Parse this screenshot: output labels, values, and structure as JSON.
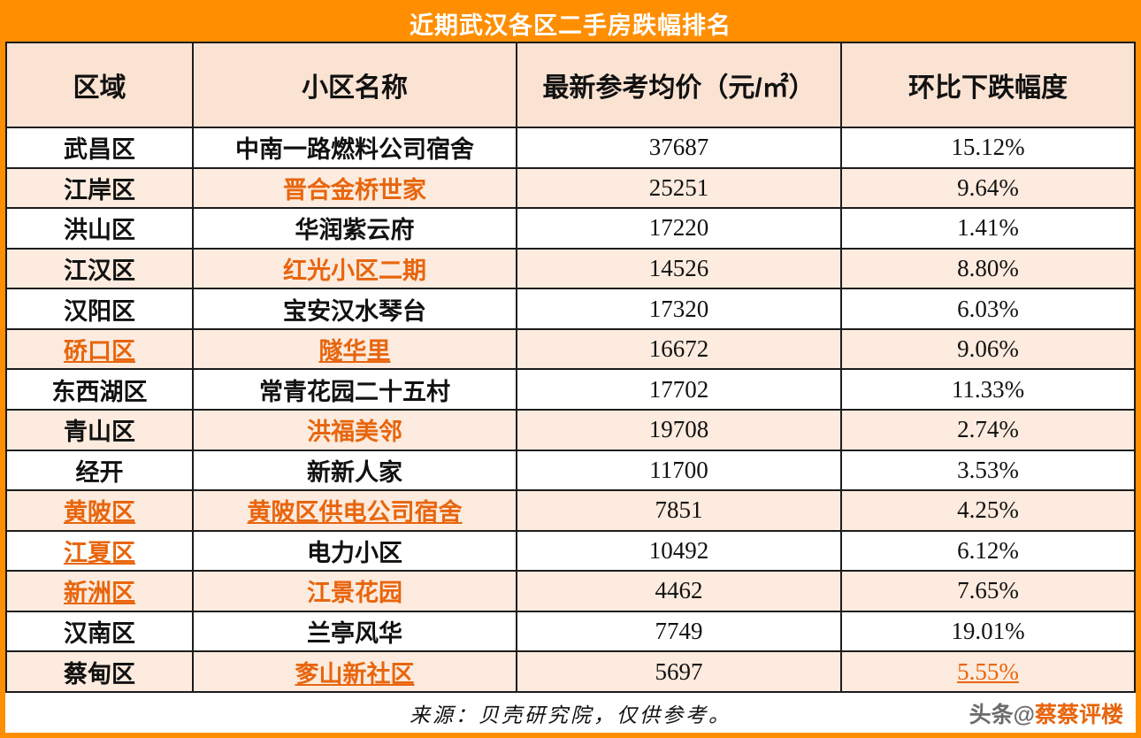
{
  "title": "近期武汉各区二手房跌幅排名",
  "chart_data": {
    "type": "table",
    "title": "近期武汉各区二手房跌幅排名",
    "columns": [
      "区域",
      "小区名称",
      "最新参考均价（元/㎡）",
      "环比下跌幅度"
    ],
    "rows": [
      [
        "武昌区",
        "中南一路燃料公司宿舍",
        "37687",
        "15.12%"
      ],
      [
        "江岸区",
        "晋合金桥世家",
        "25251",
        "9.64%"
      ],
      [
        "洪山区",
        "华润紫云府",
        "17220",
        "1.41%"
      ],
      [
        "江汉区",
        "红光小区二期",
        "14526",
        "8.80%"
      ],
      [
        "汉阳区",
        "宝安汉水琴台",
        "17320",
        "6.03%"
      ],
      [
        "硚口区",
        "隧华里",
        "16672",
        "9.06%"
      ],
      [
        "东西湖区",
        "常青花园二十五村",
        "17702",
        "11.33%"
      ],
      [
        "青山区",
        "洪福美邻",
        "19708",
        "2.74%"
      ],
      [
        "经开",
        "新新人家",
        "11700",
        "3.53%"
      ],
      [
        "黄陂区",
        "黄陂区供电公司宿舍",
        "7851",
        "4.25%"
      ],
      [
        "江夏区",
        "电力小区",
        "10492",
        "6.12%"
      ],
      [
        "新洲区",
        "江景花园",
        "4462",
        "7.65%"
      ],
      [
        "汉南区",
        "兰亭风华",
        "7749",
        "19.01%"
      ],
      [
        "蔡甸区",
        "奓山新社区",
        "5697",
        "5.55%"
      ]
    ]
  },
  "row_styles": [
    {
      "striped": false,
      "district": "normal",
      "community": "normal",
      "drop": "normal"
    },
    {
      "striped": true,
      "district": "normal",
      "community": "orange",
      "drop": "normal"
    },
    {
      "striped": false,
      "district": "normal",
      "community": "normal",
      "drop": "normal"
    },
    {
      "striped": true,
      "district": "normal",
      "community": "orange",
      "drop": "normal"
    },
    {
      "striped": false,
      "district": "normal",
      "community": "normal",
      "drop": "normal"
    },
    {
      "striped": true,
      "district": "orange-underline",
      "community": "orange-underline",
      "drop": "normal"
    },
    {
      "striped": false,
      "district": "normal",
      "community": "normal",
      "drop": "normal"
    },
    {
      "striped": true,
      "district": "normal",
      "community": "orange",
      "drop": "normal"
    },
    {
      "striped": false,
      "district": "normal",
      "community": "normal",
      "drop": "normal"
    },
    {
      "striped": true,
      "district": "orange-underline",
      "community": "orange-underline",
      "drop": "normal"
    },
    {
      "striped": false,
      "district": "orange-underline",
      "community": "normal",
      "drop": "normal"
    },
    {
      "striped": true,
      "district": "orange-underline",
      "community": "orange",
      "drop": "normal"
    },
    {
      "striped": false,
      "district": "normal",
      "community": "normal",
      "drop": "normal"
    },
    {
      "striped": true,
      "district": "normal",
      "community": "orange-underline",
      "drop": "orange-underline"
    }
  ],
  "footer": {
    "source": "来源：贝壳研究院，仅供参考。",
    "watermark_prefix": "头条@",
    "watermark_name": "蔡蔡评楼"
  },
  "colors": {
    "accent_orange": "#FF8E00",
    "header_bg": "#FBE3D3",
    "stripe_bg": "#FCEBDE",
    "link_orange": "#E8650D",
    "grid_line": "#1c1c1c",
    "title_text": "#FFFFFF"
  }
}
